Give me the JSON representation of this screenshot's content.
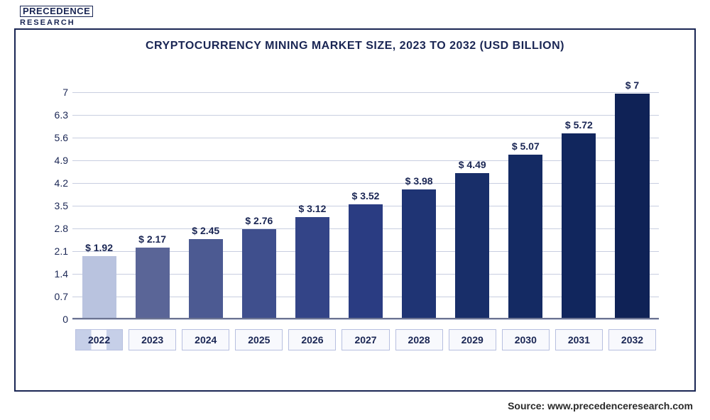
{
  "logo": {
    "line1": "PRECEDENCE",
    "line2": "RESEARCH"
  },
  "chart": {
    "type": "bar",
    "title": "CRYPTOCURRENCY MINING MARKET SIZE, 2023 TO 2032 (USD BILLION)",
    "title_fontsize": 16,
    "categories": [
      "2022",
      "2023",
      "2024",
      "2025",
      "2026",
      "2027",
      "2028",
      "2029",
      "2030",
      "2031",
      "2032"
    ],
    "values": [
      1.92,
      2.17,
      2.45,
      2.76,
      3.12,
      3.52,
      3.98,
      4.49,
      5.07,
      5.72,
      7
    ],
    "value_labels": [
      "$ 1.92",
      "$ 2.17",
      "$ 2.45",
      "$ 2.76",
      "$ 3.12",
      "$ 3.52",
      "$ 3.98",
      "$ 4.49",
      "$ 5.07",
      "$ 5.72",
      "$ 7"
    ],
    "bar_colors": [
      "#b9c3df",
      "#5a6597",
      "#4c5a92",
      "#3f4f8d",
      "#334487",
      "#2a3c82",
      "#1f3474",
      "#182e69",
      "#142a63",
      "#11265d",
      "#0f2256"
    ],
    "ylim": [
      0,
      7.4
    ],
    "yticks": [
      0,
      0.7,
      1.4,
      2.1,
      2.8,
      3.5,
      4.2,
      4.9,
      5.6,
      6.3,
      7
    ],
    "ytick_labels": [
      "0",
      "0.7",
      "1.4",
      "2.1",
      "2.8",
      "3.5",
      "4.2",
      "4.9",
      "5.6",
      "6.3",
      "7"
    ],
    "grid_color": "#c8cee0",
    "axis_label_color": "#1a2654",
    "label_fontsize": 14,
    "value_label_fontsize": 14,
    "background_color": "#ffffff",
    "bar_width": 0.64
  },
  "source": "Source: www.precedenceresearch.com"
}
